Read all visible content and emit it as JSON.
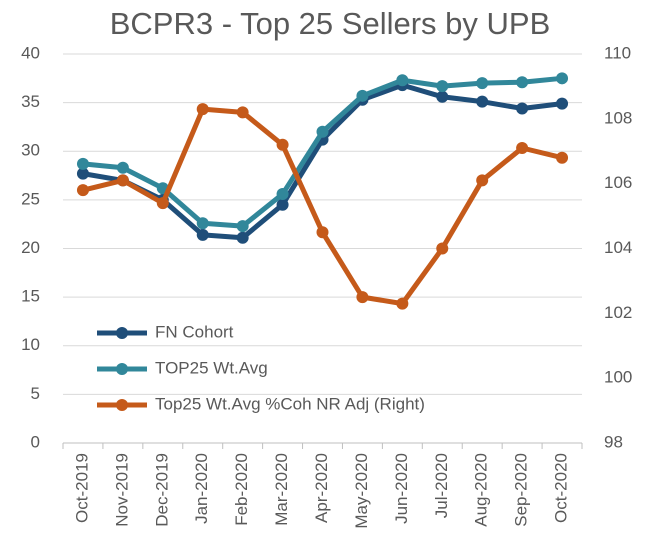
{
  "chart_data": {
    "type": "line",
    "title": "BCPR3 - Top 25 Sellers by UPB",
    "categories": [
      "Oct-2019",
      "Nov-2019",
      "Dec-2019",
      "Jan-2020",
      "Feb-2020",
      "Mar-2020",
      "Apr-2020",
      "May-2020",
      "Jun-2020",
      "Jul-2020",
      "Aug-2020",
      "Sep-2020",
      "Oct-2020"
    ],
    "series": [
      {
        "name": "FN Cohort",
        "color": "#1f4e79",
        "values": [
          27.7,
          27.0,
          25.0,
          21.4,
          21.1,
          24.5,
          31.2,
          35.3,
          36.8,
          35.6,
          35.1,
          34.4,
          34.9
        ]
      },
      {
        "name": "TOP25 Wt.Avg",
        "color": "#31879a",
        "values": [
          28.7,
          28.3,
          26.2,
          22.6,
          22.3,
          25.6,
          32.0,
          35.7,
          37.3,
          36.7,
          37.0,
          37.1,
          37.5
        ]
      },
      {
        "name": "Top25 Wt.Avg %Coh NR Adj (Right)",
        "color": "#c55a1a",
        "axis": "y2",
        "values": [
          105.8,
          106.1,
          105.4,
          108.3,
          108.2,
          107.2,
          104.5,
          102.5,
          102.3,
          104.0,
          106.1,
          107.1,
          106.8
        ]
      }
    ],
    "ylim": [
      0,
      40
    ],
    "yticks": [
      0,
      5,
      10,
      15,
      20,
      25,
      30,
      35,
      40
    ],
    "y2lim": [
      98,
      110
    ],
    "y2ticks": [
      98,
      100,
      102,
      104,
      106,
      108,
      110
    ],
    "grid": true,
    "legend": "lower left"
  }
}
